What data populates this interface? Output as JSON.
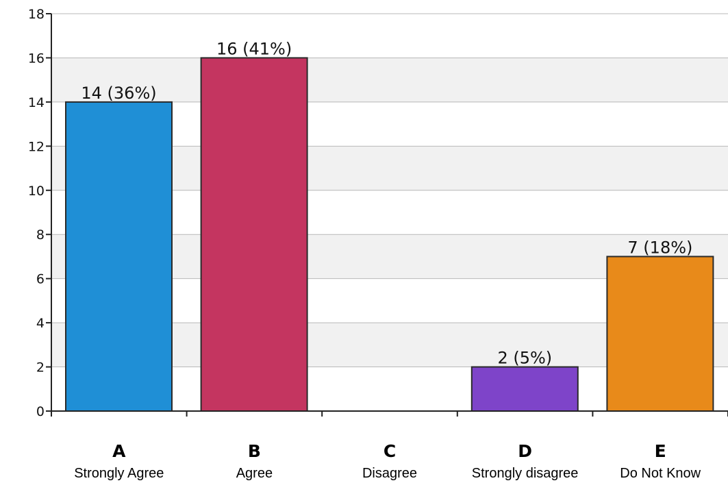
{
  "chart_data": {
    "type": "bar",
    "categories": [
      "A",
      "B",
      "C",
      "D",
      "E"
    ],
    "category_labels": [
      "Strongly Agree",
      "Agree",
      "Disagree",
      "Strongly disagree",
      "Do Not Know"
    ],
    "values": [
      14,
      16,
      0,
      2,
      7
    ],
    "data_labels": [
      "14 (36%)",
      "16 (41%)",
      "",
      "2 (5%)",
      "7 (18%)"
    ],
    "colors": [
      "#1f8fd6",
      "#c43560",
      "#cccccc",
      "#7e44c9",
      "#e88a1a"
    ],
    "ylim": [
      0,
      18
    ],
    "yticks": [
      0,
      2,
      4,
      6,
      8,
      10,
      12,
      14,
      16,
      18
    ],
    "grid": true,
    "grid_band_colors": [
      "#ffffff",
      "#f1f1f1"
    ],
    "title": "",
    "xlabel": "",
    "ylabel": ""
  }
}
